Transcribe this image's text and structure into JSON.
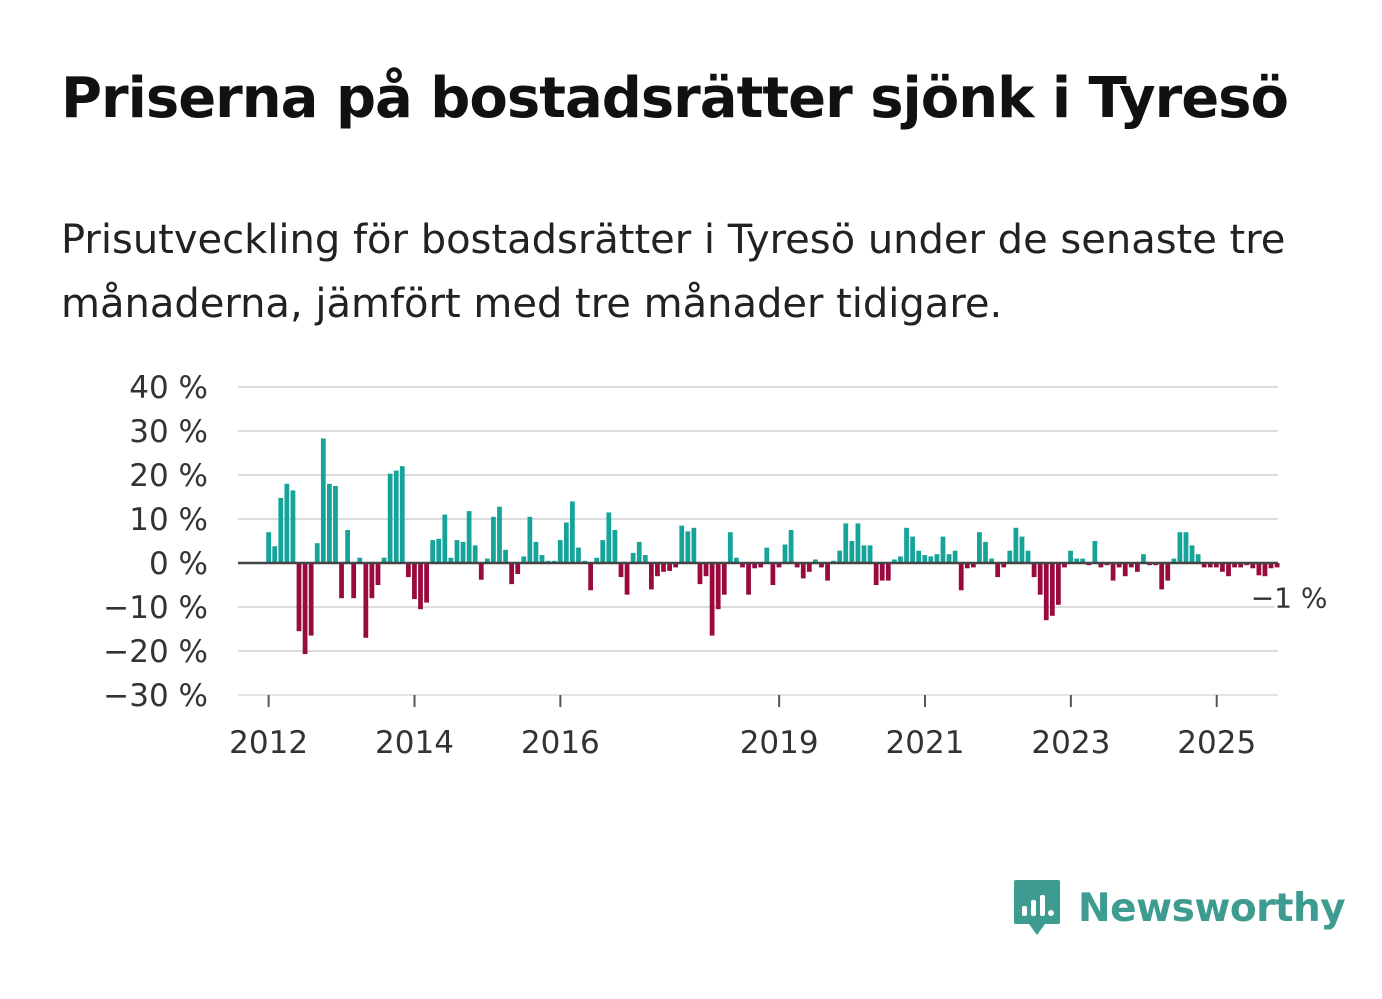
{
  "title": "Priserna på bostadsrätter sjönk i Tyresö",
  "subtitle": "Prisutveckling för bostadsrätter i Tyresö under de senaste tre månaderna, jämfört med tre månader tidigare.",
  "brand": {
    "name": "Newsworthy",
    "color": "#3d9b8f",
    "icon": "bar-chart-speech-bubble-icon"
  },
  "colors": {
    "positive": "#16a39a",
    "negative": "#9a0a3e",
    "grid": "#dcdcdc",
    "zero": "#444444"
  },
  "chart_data": {
    "type": "bar",
    "title": "Priserna på bostadsrätter sjönk i Tyresö",
    "xlabel": "",
    "ylabel": "",
    "ylim": [
      -30,
      40
    ],
    "yticks": [
      40,
      30,
      20,
      10,
      0,
      -10,
      -20,
      -30
    ],
    "ytick_labels": [
      "40 %",
      "30 %",
      "20 %",
      "10 %",
      "0 %",
      "−10 %",
      "−20 %",
      "−30 %"
    ],
    "xticks": [
      2012,
      2014,
      2016,
      2019,
      2021,
      2023,
      2025
    ],
    "xtick_labels": [
      "2012",
      "2014",
      "2016",
      "2019",
      "2021",
      "2023",
      "2025"
    ],
    "x_start": 2011.58,
    "x_end": 2025.84,
    "series": [
      {
        "name": "Prisutveckling",
        "start_year": 2012.0,
        "step_years": 0.0833,
        "values": [
          7,
          3.8,
          14.8,
          18,
          16.5,
          -15.5,
          -20.7,
          -16.5,
          4.5,
          28.3,
          18,
          17.5,
          -8,
          7.5,
          -8,
          1.2,
          -17,
          -8,
          -5,
          1.2,
          20.3,
          21,
          22,
          -3.2,
          -8.2,
          -10.5,
          -9,
          5.2,
          5.5,
          11,
          1.2,
          5.2,
          4.8,
          11.8,
          4,
          -3.8,
          1,
          10.5,
          12.8,
          3,
          -4.8,
          -2.5,
          1.5,
          10.5,
          4.8,
          1.8,
          0.5,
          0.5,
          5.2,
          9.2,
          14,
          3.5,
          0.5,
          -6.2,
          1.2,
          5.2,
          11.5,
          7.5,
          -3.2,
          -7.2,
          2.3,
          4.8,
          1.8,
          -6,
          -3,
          -2,
          -1.8,
          -1,
          8.5,
          7.2,
          8,
          -4.8,
          -3,
          -16.5,
          -10.5,
          -7.2,
          7,
          1.2,
          -1,
          -7.2,
          -1.2,
          -1,
          3.5,
          -5,
          -1,
          4.2,
          7.5,
          -1,
          -3.5,
          -2,
          0.8,
          -1,
          -4,
          0.5,
          2.8,
          9,
          5,
          9,
          4,
          4,
          -5,
          -4,
          -4,
          0.8,
          1.5,
          8,
          6,
          2.8,
          1.8,
          1.5,
          2,
          6,
          2,
          2.8,
          -6.2,
          -1.2,
          -1,
          7,
          4.8,
          1,
          -3.2,
          -1,
          2.8,
          8,
          6,
          2.8,
          -3.2,
          -7.2,
          -13,
          -12,
          -9.5,
          -1,
          2.8,
          1,
          1,
          -0.5,
          5,
          -1,
          -0.5,
          -4,
          -1,
          -3,
          -1,
          -2,
          2,
          -0.5,
          -0.5,
          -6,
          -4,
          1,
          7,
          7,
          4,
          2,
          -1,
          -1,
          -1,
          -2,
          -3,
          -1,
          -1,
          -0.5,
          -1.2,
          -2.8,
          -3,
          -1.2,
          -1
        ]
      }
    ],
    "annotations": [
      {
        "text": "−1 %",
        "value": -1,
        "anchor": "last"
      }
    ]
  }
}
